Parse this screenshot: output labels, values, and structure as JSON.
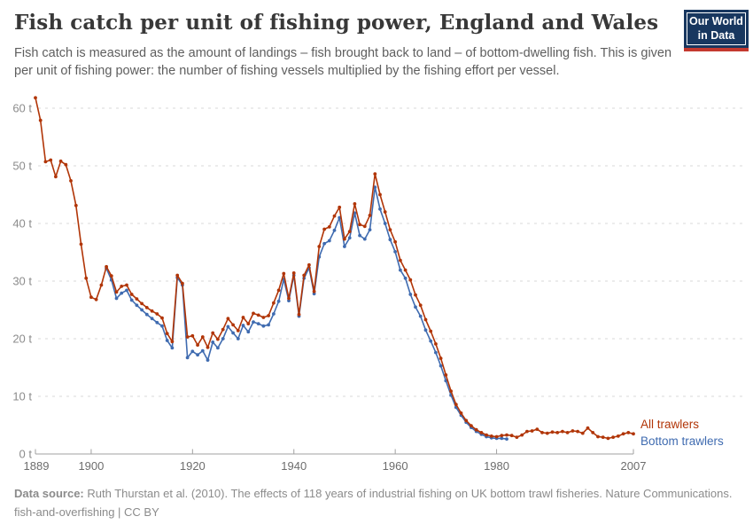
{
  "header": {
    "title": "Fish catch per unit of fishing power, England and Wales",
    "subtitle": "Fish catch is measured as the amount of landings – fish brought back to land – of bottom-dwelling fish. This is given per unit of fishing power: the number of fishing vessels multiplied by the fishing effort per vessel.",
    "logo": {
      "line1": "Our World",
      "line2": "in Data",
      "bg_color": "#18375f",
      "accent_color": "#c4392f"
    }
  },
  "chart_data": {
    "type": "line",
    "title": "Fish catch per unit of fishing power, England and Wales",
    "unit": "t",
    "xlim": [
      1889,
      2007
    ],
    "ylim": [
      0,
      62
    ],
    "grid": true,
    "legend_position": "right-of-line-end",
    "x_ticks": [
      1889,
      1900,
      1920,
      1940,
      1960,
      1980,
      2007
    ],
    "x_tick_labels": [
      "1889",
      "1900",
      "1920",
      "1940",
      "1960",
      "1980",
      "2007"
    ],
    "y_ticks": [
      0,
      10,
      20,
      30,
      40,
      50,
      60
    ],
    "y_tick_labels": [
      "0 t",
      "10 t",
      "20 t",
      "30 t",
      "40 t",
      "50 t",
      "60 t"
    ],
    "series": [
      {
        "name": "All trawlers",
        "color": "#b13507",
        "start_year": 1889,
        "end_year": 2007,
        "values": [
          61.8,
          57.9,
          50.7,
          51.0,
          48.1,
          50.8,
          50.2,
          47.4,
          43.1,
          36.4,
          30.5,
          27.2,
          26.8,
          29.3,
          32.5,
          30.9,
          28.1,
          29.1,
          29.3,
          27.7,
          26.9,
          26.1,
          25.4,
          24.8,
          24.3,
          23.6,
          20.9,
          19.5,
          31.0,
          29.6,
          20.3,
          20.5,
          18.9,
          20.3,
          18.5,
          21.0,
          19.9,
          21.6,
          23.5,
          22.4,
          21.4,
          23.7,
          22.6,
          24.4,
          24.1,
          23.7,
          24.0,
          26.2,
          28.4,
          31.3,
          27.0,
          31.4,
          24.2,
          31.0,
          32.8,
          28.2,
          36.0,
          39.0,
          39.4,
          41.3,
          42.8,
          37.3,
          38.6,
          43.4,
          39.8,
          39.5,
          41.4,
          48.6,
          45.0,
          42.0,
          38.9,
          36.8,
          33.6,
          31.9,
          30.2,
          27.6,
          25.8,
          23.3,
          21.3,
          19.1,
          16.6,
          13.7,
          10.9,
          8.6,
          7.1,
          5.8,
          4.9,
          4.2,
          3.7,
          3.3,
          3.1,
          3.0,
          3.2,
          3.3,
          3.2,
          2.9,
          3.3,
          3.9,
          4.0,
          4.3,
          3.7,
          3.6,
          3.8,
          3.7,
          3.9,
          3.7,
          4.0,
          3.9,
          3.6,
          4.5,
          3.7,
          3.0,
          2.9,
          2.7,
          2.9,
          3.1,
          3.5,
          3.7,
          3.5
        ]
      },
      {
        "name": "Bottom trawlers",
        "color": "#3f6bb0",
        "start_year": 1903,
        "end_year": 1982,
        "values": [
          32.2,
          30.2,
          27.0,
          27.9,
          28.4,
          26.7,
          25.8,
          25.0,
          24.2,
          23.5,
          22.8,
          22.2,
          19.7,
          18.4,
          30.6,
          29.3,
          16.7,
          17.8,
          17.2,
          17.9,
          16.3,
          19.4,
          18.4,
          20.0,
          22.1,
          21.0,
          20.0,
          22.3,
          21.2,
          22.9,
          22.6,
          22.2,
          22.4,
          24.3,
          26.5,
          30.3,
          26.6,
          31.0,
          23.9,
          30.5,
          32.3,
          27.8,
          34.2,
          36.5,
          37.0,
          38.8,
          41.0,
          36.0,
          37.5,
          41.8,
          37.9,
          37.3,
          38.9,
          46.3,
          42.5,
          40.0,
          37.2,
          35.1,
          31.9,
          30.5,
          27.7,
          25.5,
          23.9,
          21.5,
          19.6,
          17.6,
          15.3,
          12.7,
          10.2,
          8.1,
          6.7,
          5.5,
          4.6,
          3.9,
          3.4,
          3.0,
          2.8,
          2.7,
          2.7,
          2.6
        ]
      }
    ]
  },
  "footer": {
    "source_label": "Data source:",
    "source_text": " Ruth Thurstan et al. (2010). The effects of 118 years of industrial fishing on UK bottom trawl fisheries. Nature Communications.",
    "license_line": "fish-and-overfishing | CC BY"
  }
}
